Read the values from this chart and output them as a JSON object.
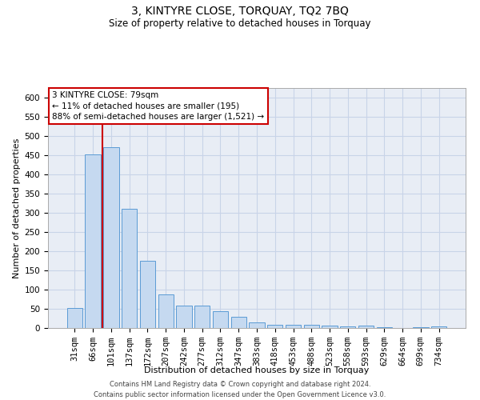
{
  "title": "3, KINTYRE CLOSE, TORQUAY, TQ2 7BQ",
  "subtitle": "Size of property relative to detached houses in Torquay",
  "xlabel": "Distribution of detached houses by size in Torquay",
  "ylabel": "Number of detached properties",
  "categories": [
    "31sqm",
    "66sqm",
    "101sqm",
    "137sqm",
    "172sqm",
    "207sqm",
    "242sqm",
    "277sqm",
    "312sqm",
    "347sqm",
    "383sqm",
    "418sqm",
    "453sqm",
    "488sqm",
    "523sqm",
    "558sqm",
    "593sqm",
    "629sqm",
    "664sqm",
    "699sqm",
    "734sqm"
  ],
  "values": [
    52,
    452,
    470,
    310,
    175,
    88,
    58,
    58,
    43,
    30,
    15,
    8,
    8,
    8,
    7,
    5,
    7,
    2,
    0,
    2,
    4
  ],
  "bar_color": "#c5d9f0",
  "bar_edge_color": "#5b9bd5",
  "vline_color": "#cc0000",
  "vline_x_index": 1.5,
  "annotation_text": "3 KINTYRE CLOSE: 79sqm\n← 11% of detached houses are smaller (195)\n88% of semi-detached houses are larger (1,521) →",
  "annotation_box_color": "#ffffff",
  "annotation_box_edge_color": "#cc0000",
  "ylim": [
    0,
    625
  ],
  "yticks": [
    0,
    50,
    100,
    150,
    200,
    250,
    300,
    350,
    400,
    450,
    500,
    550,
    600
  ],
  "grid_color": "#c8d4e8",
  "bg_color": "#e8edf5",
  "footer": "Contains HM Land Registry data © Crown copyright and database right 2024.\nContains public sector information licensed under the Open Government Licence v3.0.",
  "title_fontsize": 10,
  "subtitle_fontsize": 8.5,
  "xlabel_fontsize": 8,
  "ylabel_fontsize": 8,
  "tick_fontsize": 7.5,
  "annot_fontsize": 7.5,
  "footer_fontsize": 6
}
